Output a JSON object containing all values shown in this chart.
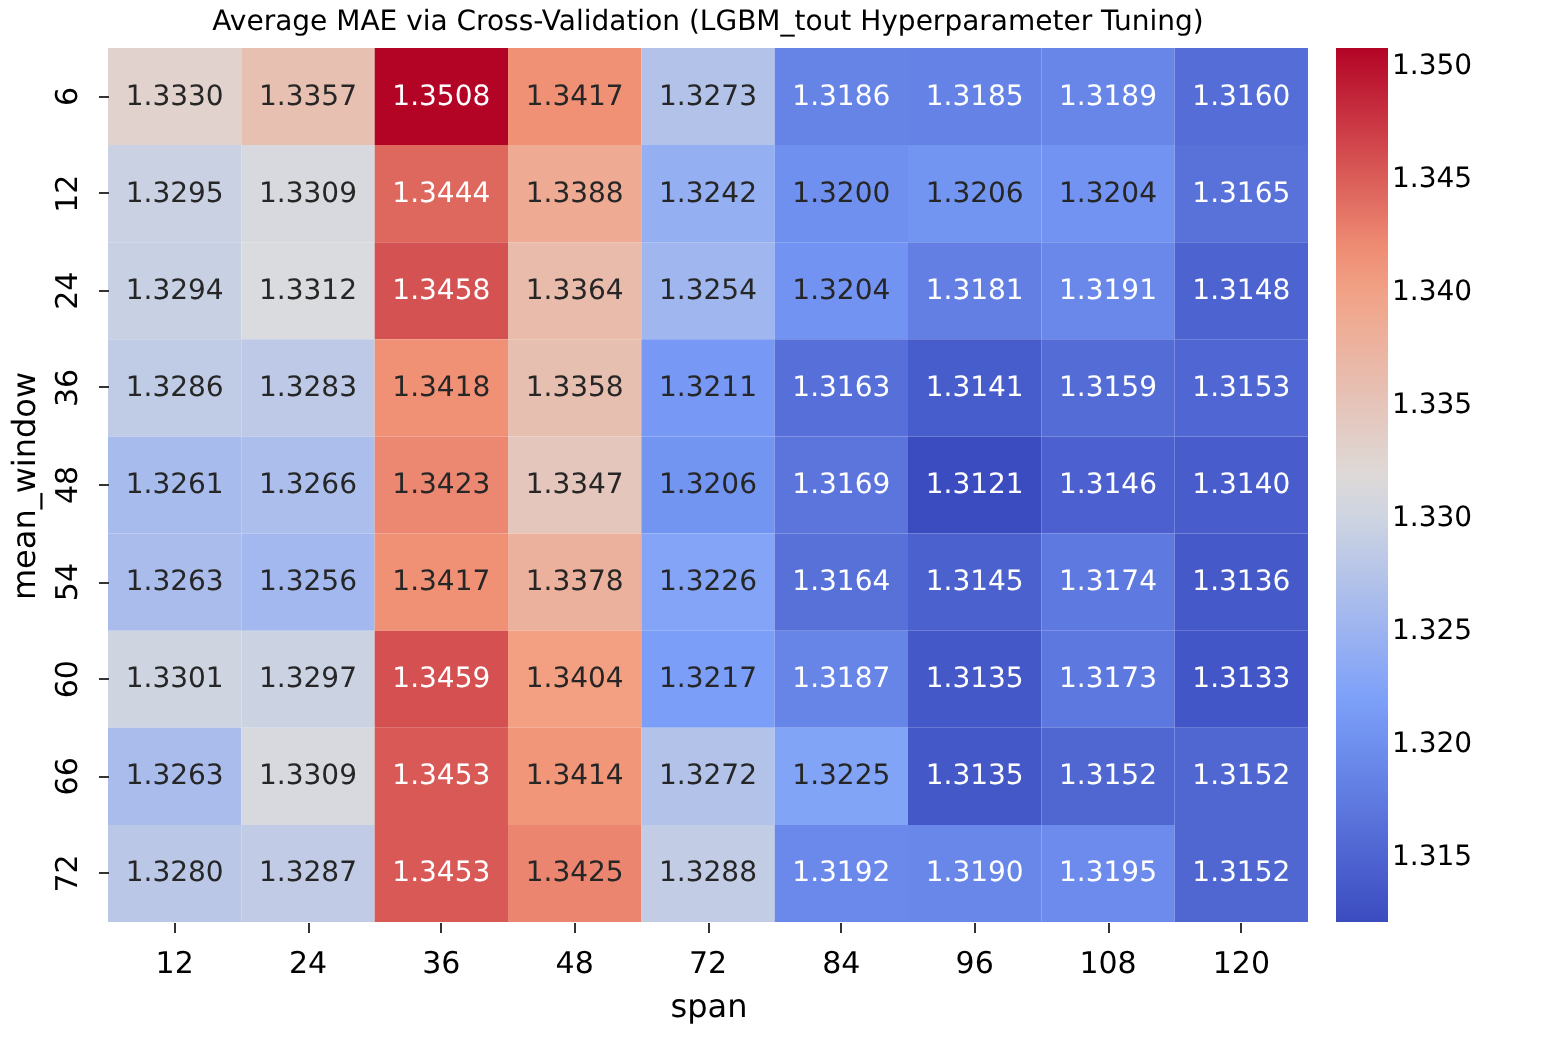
{
  "chart_data": {
    "type": "heatmap",
    "title": "Average MAE via Cross-Validation (LGBM_tout Hyperparameter Tuning)",
    "xlabel": "span",
    "ylabel": "mean_window",
    "categories": [
      "12",
      "24",
      "36",
      "48",
      "72",
      "84",
      "96",
      "108",
      "120"
    ],
    "y_categories": [
      "6",
      "12",
      "24",
      "36",
      "48",
      "54",
      "60",
      "66",
      "72"
    ],
    "cells": [
      [
        1.333,
        1.3357,
        1.3508,
        1.3417,
        1.3273,
        1.3186,
        1.3185,
        1.3189,
        1.316
      ],
      [
        1.3295,
        1.3309,
        1.3444,
        1.3388,
        1.3242,
        1.32,
        1.3206,
        1.3204,
        1.3165
      ],
      [
        1.3294,
        1.3312,
        1.3458,
        1.3364,
        1.3254,
        1.3204,
        1.3181,
        1.3191,
        1.3148
      ],
      [
        1.3286,
        1.3283,
        1.3418,
        1.3358,
        1.3211,
        1.3163,
        1.3141,
        1.3159,
        1.3153
      ],
      [
        1.3261,
        1.3266,
        1.3423,
        1.3347,
        1.3206,
        1.3169,
        1.3121,
        1.3146,
        1.314
      ],
      [
        1.3263,
        1.3256,
        1.3417,
        1.3378,
        1.3226,
        1.3164,
        1.3145,
        1.3174,
        1.3136
      ],
      [
        1.3301,
        1.3297,
        1.3459,
        1.3404,
        1.3217,
        1.3187,
        1.3135,
        1.3173,
        1.3133
      ],
      [
        1.3263,
        1.3309,
        1.3453,
        1.3414,
        1.3272,
        1.3225,
        1.3135,
        1.3152,
        1.3152
      ],
      [
        1.328,
        1.3287,
        1.3453,
        1.3425,
        1.3288,
        1.3192,
        1.319,
        1.3195,
        1.3152
      ]
    ],
    "cell_labels": [
      [
        "1.3330",
        "1.3357",
        "1.3508",
        "1.3417",
        "1.3273",
        "1.3186",
        "1.3185",
        "1.3189",
        "1.3160"
      ],
      [
        "1.3295",
        "1.3309",
        "1.3444",
        "1.3388",
        "1.3242",
        "1.3200",
        "1.3206",
        "1.3204",
        "1.3165"
      ],
      [
        "1.3294",
        "1.3312",
        "1.3458",
        "1.3364",
        "1.3254",
        "1.3204",
        "1.3181",
        "1.3191",
        "1.3148"
      ],
      [
        "1.3286",
        "1.3283",
        "1.3418",
        "1.3358",
        "1.3211",
        "1.3163",
        "1.3141",
        "1.3159",
        "1.3153"
      ],
      [
        "1.3261",
        "1.3266",
        "1.3423",
        "1.3347",
        "1.3206",
        "1.3169",
        "1.3121",
        "1.3146",
        "1.3140"
      ],
      [
        "1.3263",
        "1.3256",
        "1.3417",
        "1.3378",
        "1.3226",
        "1.3164",
        "1.3145",
        "1.3174",
        "1.3136"
      ],
      [
        "1.3301",
        "1.3297",
        "1.3459",
        "1.3404",
        "1.3217",
        "1.3187",
        "1.3135",
        "1.3173",
        "1.3133"
      ],
      [
        "1.3263",
        "1.3309",
        "1.3453",
        "1.3414",
        "1.3272",
        "1.3225",
        "1.3135",
        "1.3152",
        "1.3152"
      ],
      [
        "1.3280",
        "1.3287",
        "1.3453",
        "1.3425",
        "1.3288",
        "1.3192",
        "1.3190",
        "1.3195",
        "1.3152"
      ]
    ],
    "clim": [
      1.3121,
      1.3508
    ],
    "cticks": [
      1.315,
      {
        "value": 1.32,
        "label": "1.320"
      },
      1.325,
      {
        "value": 1.33,
        "label": "1.330"
      },
      1.335,
      {
        "value": 1.34,
        "label": "1.340"
      },
      1.345,
      {
        "value": 1.35,
        "label": "1.350"
      }
    ]
  }
}
